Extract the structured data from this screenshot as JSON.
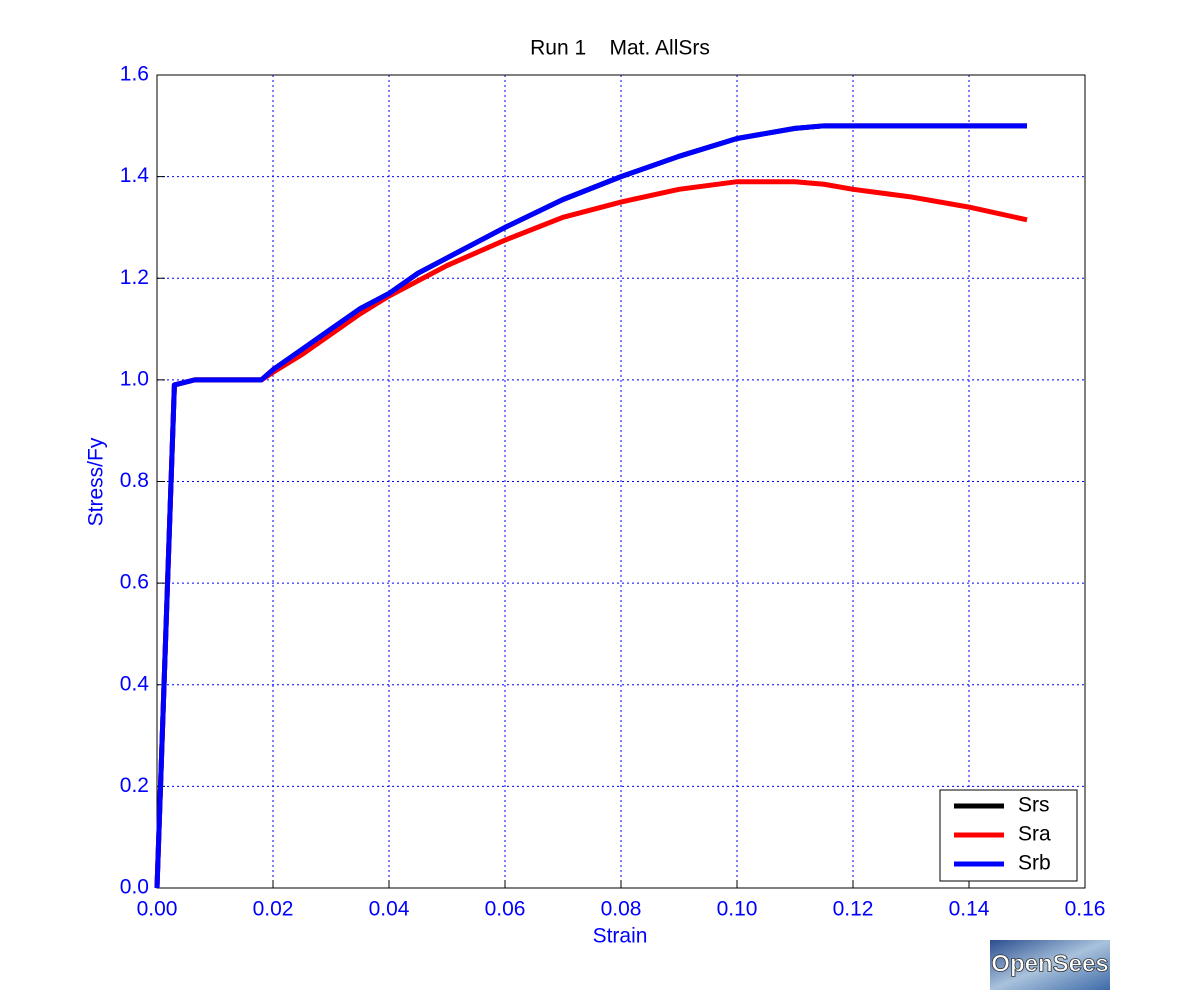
{
  "chart_data": {
    "type": "line",
    "title": "Run 1    Mat. AllSrs",
    "xlabel": "Strain",
    "ylabel": "Stress/Fy",
    "x": [
      0,
      0.003,
      0.0065,
      0.018,
      0.02,
      0.025,
      0.03,
      0.035,
      0.04,
      0.045,
      0.05,
      0.06,
      0.07,
      0.08,
      0.09,
      0.1,
      0.11,
      0.115,
      0.12,
      0.13,
      0.14,
      0.15
    ],
    "series": [
      {
        "name": "Srs",
        "color": "#000000",
        "values": [
          0,
          0.99,
          1.0,
          1.0,
          1.02,
          1.06,
          1.1,
          1.14,
          1.17,
          1.21,
          1.24,
          1.3,
          1.355,
          1.4,
          1.44,
          1.475,
          1.495,
          1.5,
          1.5,
          1.5,
          1.5,
          1.5
        ]
      },
      {
        "name": "Sra",
        "color": "#ff0000",
        "values": [
          0,
          0.99,
          1.0,
          1.0,
          1.015,
          1.05,
          1.09,
          1.13,
          1.165,
          1.195,
          1.225,
          1.275,
          1.32,
          1.35,
          1.375,
          1.39,
          1.39,
          1.385,
          1.375,
          1.36,
          1.34,
          1.315
        ]
      },
      {
        "name": "Srb",
        "color": "#0000ff",
        "values": [
          0,
          0.99,
          1.0,
          1.0,
          1.02,
          1.06,
          1.1,
          1.14,
          1.17,
          1.21,
          1.24,
          1.3,
          1.355,
          1.4,
          1.44,
          1.475,
          1.495,
          1.5,
          1.5,
          1.5,
          1.5,
          1.5
        ]
      }
    ],
    "xlim": [
      0,
      0.16
    ],
    "ylim": [
      0,
      1.6
    ],
    "xticks": [
      {
        "value": 0,
        "label": "0.00"
      },
      {
        "value": 0.02,
        "label": "0.02"
      },
      {
        "value": 0.04,
        "label": "0.04"
      },
      {
        "value": 0.06,
        "label": "0.06"
      },
      {
        "value": 0.08,
        "label": "0.08"
      },
      {
        "value": 0.1,
        "label": "0.10"
      },
      {
        "value": 0.12,
        "label": "0.12"
      },
      {
        "value": 0.14,
        "label": "0.14"
      },
      {
        "value": 0.16,
        "label": "0.16"
      }
    ],
    "yticks": [
      {
        "value": 0,
        "label": "0.0"
      },
      {
        "value": 0.2,
        "label": "0.2"
      },
      {
        "value": 0.4,
        "label": "0.4"
      },
      {
        "value": 0.6,
        "label": "0.6"
      },
      {
        "value": 0.8,
        "label": "0.8"
      },
      {
        "value": 1.0,
        "label": "1.0"
      },
      {
        "value": 1.2,
        "label": "1.2"
      },
      {
        "value": 1.4,
        "label": "1.4"
      },
      {
        "value": 1.6,
        "label": "1.6"
      }
    ],
    "grid": true,
    "legend": "lower right"
  },
  "logo": "OpenSees"
}
